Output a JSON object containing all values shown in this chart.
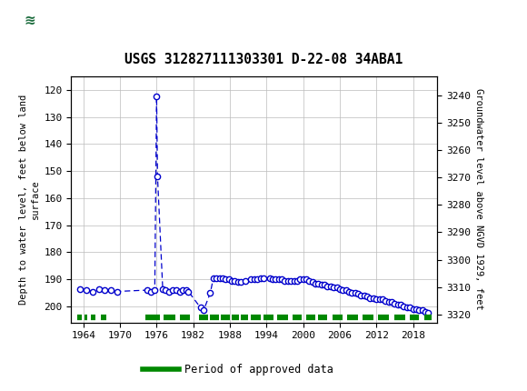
{
  "title": "USGS 312827111303301 D-22-08 34ABA1",
  "ylabel_left": "Depth to water level, feet below land\nsurface",
  "ylabel_right": "Groundwater level above NGVD 1929, feet",
  "header_color": "#1a6b3c",
  "ylim_left": [
    115,
    206
  ],
  "xlim": [
    1962,
    2022
  ],
  "yticks_left": [
    120,
    130,
    140,
    150,
    160,
    170,
    180,
    190,
    200
  ],
  "yticks_right": [
    3320,
    3310,
    3300,
    3290,
    3280,
    3270,
    3260,
    3250,
    3240
  ],
  "xticks": [
    1964,
    1970,
    1976,
    1982,
    1988,
    1994,
    2000,
    2006,
    2012,
    2018
  ],
  "data_x": [
    1963.5,
    1964.5,
    1965.5,
    1966.5,
    1967.5,
    1968.5,
    1969.5,
    1974.5,
    1975.0,
    1975.7,
    1976.0,
    1976.15,
    1977.0,
    1977.5,
    1978.0,
    1978.7,
    1979.2,
    1979.8,
    1980.3,
    1980.8,
    1981.2,
    1983.2,
    1983.7,
    1984.8,
    1985.3,
    1985.8,
    1986.3,
    1986.8,
    1987.3,
    1987.8,
    1988.3,
    1988.8,
    1989.3,
    1989.8,
    1990.5,
    1991.5,
    1992.0,
    1992.5,
    1993.0,
    1993.5,
    1994.5,
    1995.0,
    1995.5,
    1996.0,
    1996.5,
    1997.0,
    1997.5,
    1998.0,
    1998.5,
    1999.0,
    1999.5,
    2000.0,
    2000.5,
    2001.0,
    2001.5,
    2002.0,
    2002.5,
    2003.0,
    2003.5,
    2004.0,
    2004.5,
    2005.0,
    2005.5,
    2006.0,
    2006.5,
    2007.0,
    2007.5,
    2008.0,
    2008.5,
    2009.0,
    2009.5,
    2010.0,
    2010.5,
    2011.0,
    2011.5,
    2012.0,
    2012.5,
    2013.0,
    2013.5,
    2014.0,
    2014.5,
    2015.0,
    2015.5,
    2016.0,
    2016.5,
    2017.0,
    2017.5,
    2018.0,
    2018.5,
    2019.0,
    2019.5,
    2020.0,
    2020.5
  ],
  "data_y": [
    193.5,
    194.0,
    194.5,
    193.5,
    194.0,
    194.0,
    194.5,
    194.0,
    194.5,
    194.0,
    122.5,
    152.0,
    193.5,
    194.0,
    194.5,
    194.0,
    194.0,
    194.5,
    194.0,
    194.0,
    194.5,
    200.5,
    201.5,
    195.0,
    189.5,
    189.5,
    189.5,
    189.5,
    190.0,
    190.0,
    190.5,
    190.5,
    191.0,
    191.0,
    190.5,
    190.0,
    190.0,
    190.0,
    189.5,
    189.5,
    189.5,
    190.0,
    190.0,
    190.0,
    190.0,
    190.5,
    190.5,
    190.5,
    190.5,
    190.5,
    190.0,
    190.0,
    190.0,
    190.5,
    191.0,
    191.5,
    191.5,
    192.0,
    192.0,
    192.5,
    192.5,
    193.0,
    193.0,
    193.5,
    194.0,
    194.0,
    194.5,
    195.0,
    195.0,
    195.5,
    196.0,
    196.0,
    196.5,
    197.0,
    197.0,
    197.5,
    197.5,
    197.5,
    198.0,
    198.5,
    198.5,
    199.0,
    199.5,
    199.5,
    200.0,
    200.5,
    200.5,
    201.0,
    201.0,
    201.5,
    201.5,
    202.0,
    202.5
  ],
  "approved_segments": [
    [
      1963.0,
      1963.7
    ],
    [
      1964.2,
      1964.7
    ],
    [
      1965.2,
      1966.0
    ],
    [
      1966.8,
      1967.8
    ],
    [
      1974.2,
      1976.6
    ],
    [
      1977.2,
      1979.0
    ],
    [
      1979.8,
      1981.5
    ],
    [
      1983.0,
      1984.5
    ],
    [
      1984.8,
      1986.2
    ],
    [
      1986.5,
      1988.0
    ],
    [
      1988.3,
      1989.5
    ],
    [
      1989.8,
      1991.0
    ],
    [
      1991.5,
      1993.0
    ],
    [
      1993.5,
      1995.2
    ],
    [
      1995.8,
      1997.5
    ],
    [
      1998.2,
      1999.8
    ],
    [
      2000.5,
      2002.0
    ],
    [
      2002.5,
      2004.0
    ],
    [
      2004.8,
      2006.5
    ],
    [
      2007.2,
      2009.0
    ],
    [
      2009.8,
      2011.5
    ],
    [
      2012.2,
      2014.0
    ],
    [
      2015.0,
      2016.8
    ],
    [
      2017.5,
      2019.0
    ],
    [
      2019.8,
      2021.0
    ]
  ],
  "line_color": "#0000cc",
  "marker_color": "#0000cc",
  "approved_data_color": "#008800",
  "legend_label": "Period of approved data",
  "background_color": "#ffffff",
  "grid_color": "#bbbbbb"
}
